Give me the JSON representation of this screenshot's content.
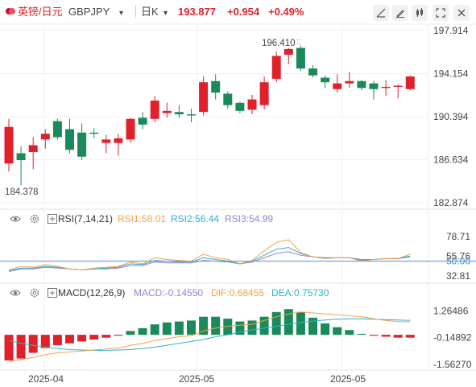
{
  "header": {
    "symbol_name": "英镑/日元",
    "symbol_code": "GBPJPY",
    "symbol_caret": "▾",
    "period": "日K",
    "period_caret": "▾",
    "last_price": "193.877",
    "change": "+0.954",
    "change_pct": "+0.49%",
    "up_color": "#e0212b"
  },
  "toolbar": {
    "icons": [
      "drawing-tools-icon",
      "edit-icon",
      "settings-icon",
      "candlestick-style-icon",
      "fullscreen-icon",
      "close-icon"
    ]
  },
  "rsi_panel": {
    "label": "RSI(7,14,21)",
    "rsi1_label": "RSI1:58.01",
    "rsi2_label": "RSI2:56.44",
    "rsi3_label": "RSI3:54.99",
    "axis_labels": [
      "78.71",
      "55.76",
      "50.00",
      "32.81"
    ]
  },
  "macd_panel": {
    "label": "MACD(12,26,9)",
    "macd_label": "MACD:-0.14550",
    "dif_label": "DIF:0.68455",
    "dea_label": "DEA:0.75730",
    "axis_labels": [
      "1.26486",
      "-0.14892",
      "-1.56270"
    ]
  },
  "colors": {
    "up": "#e0212b",
    "down": "#1a8a5a",
    "rsi1": "#f5a04a",
    "rsi2": "#2bb5c8",
    "rsi3": "#9b7fd6",
    "dif": "#f5a04a",
    "dea": "#2bb5c8",
    "ref_line": "#4a90e2"
  },
  "chart_data": {
    "type": "candlestick",
    "title": "英镑/日元 GBPJPY 日K",
    "y_axis_labels": [
      "197.914",
      "194.154",
      "190.394",
      "186.634",
      "182.874"
    ],
    "ylim": [
      182.874,
      197.914
    ],
    "x_axis_labels": [
      "2025-04",
      "2025-05",
      "2025-05"
    ],
    "annotations": {
      "high_label": "196.410",
      "low_label": "184.378"
    },
    "candles": [
      {
        "o": 186.3,
        "h": 190.2,
        "l": 185.6,
        "c": 189.5
      },
      {
        "o": 187.2,
        "h": 187.8,
        "l": 184.4,
        "c": 186.6
      },
      {
        "o": 187.3,
        "h": 188.6,
        "l": 185.8,
        "c": 187.9
      },
      {
        "o": 188.4,
        "h": 189.3,
        "l": 187.6,
        "c": 188.9
      },
      {
        "o": 190.0,
        "h": 190.2,
        "l": 188.4,
        "c": 188.6
      },
      {
        "o": 189.3,
        "h": 190.2,
        "l": 187.2,
        "c": 187.5
      },
      {
        "o": 189.0,
        "h": 189.8,
        "l": 186.6,
        "c": 186.9
      },
      {
        "o": 189.0,
        "h": 189.4,
        "l": 188.5,
        "c": 188.9
      },
      {
        "o": 188.1,
        "h": 188.8,
        "l": 187.2,
        "c": 188.4
      },
      {
        "o": 188.1,
        "h": 188.9,
        "l": 187.0,
        "c": 188.5
      },
      {
        "o": 188.4,
        "h": 190.3,
        "l": 188.1,
        "c": 190.2
      },
      {
        "o": 190.3,
        "h": 190.8,
        "l": 189.3,
        "c": 189.7
      },
      {
        "o": 190.2,
        "h": 192.2,
        "l": 189.9,
        "c": 191.8
      },
      {
        "o": 190.7,
        "h": 191.6,
        "l": 190.3,
        "c": 190.9
      },
      {
        "o": 190.8,
        "h": 191.4,
        "l": 190.3,
        "c": 190.6
      },
      {
        "o": 190.6,
        "h": 191.1,
        "l": 189.9,
        "c": 190.5
      },
      {
        "o": 190.8,
        "h": 193.9,
        "l": 190.5,
        "c": 193.4
      },
      {
        "o": 193.5,
        "h": 194.1,
        "l": 191.9,
        "c": 192.5
      },
      {
        "o": 192.4,
        "h": 192.6,
        "l": 191.1,
        "c": 191.4
      },
      {
        "o": 191.6,
        "h": 191.7,
        "l": 190.7,
        "c": 190.9
      },
      {
        "o": 191.0,
        "h": 192.3,
        "l": 190.6,
        "c": 191.9
      },
      {
        "o": 191.4,
        "h": 193.9,
        "l": 191.0,
        "c": 193.4
      },
      {
        "o": 193.7,
        "h": 196.1,
        "l": 193.4,
        "c": 195.7
      },
      {
        "o": 195.8,
        "h": 196.4,
        "l": 195.0,
        "c": 196.3
      },
      {
        "o": 196.4,
        "h": 196.6,
        "l": 194.4,
        "c": 194.6
      },
      {
        "o": 194.6,
        "h": 194.9,
        "l": 193.8,
        "c": 194.0
      },
      {
        "o": 193.8,
        "h": 194.0,
        "l": 192.9,
        "c": 193.4
      },
      {
        "o": 192.8,
        "h": 194.1,
        "l": 192.5,
        "c": 193.3
      },
      {
        "o": 193.3,
        "h": 194.3,
        "l": 192.9,
        "c": 193.5
      },
      {
        "o": 193.5,
        "h": 193.6,
        "l": 192.7,
        "c": 192.9
      },
      {
        "o": 193.3,
        "h": 193.5,
        "l": 191.9,
        "c": 192.8
      },
      {
        "o": 192.9,
        "h": 193.6,
        "l": 192.2,
        "c": 193.0
      },
      {
        "o": 193.0,
        "h": 193.2,
        "l": 192.0,
        "c": 193.1
      },
      {
        "o": 192.8,
        "h": 194.0,
        "l": 192.7,
        "c": 193.9
      }
    ],
    "rsi": {
      "ylim": [
        32.81,
        78.71
      ],
      "rsi1": [
        40,
        44,
        43,
        46,
        44,
        41,
        40,
        42,
        43,
        44,
        49,
        47,
        54,
        52,
        51,
        50,
        58,
        54,
        52,
        47,
        51,
        62,
        72,
        75,
        60,
        55,
        53,
        54,
        54,
        50,
        52,
        53,
        53,
        58
      ],
      "rsi2": [
        39,
        42,
        42,
        44,
        43,
        41,
        40,
        41,
        42,
        43,
        47,
        46,
        51,
        50,
        49,
        49,
        54,
        52,
        50,
        47,
        50,
        57,
        64,
        66,
        59,
        55,
        54,
        54,
        54,
        51,
        52,
        53,
        53,
        56
      ],
      "rsi3": [
        38,
        41,
        41,
        43,
        42,
        41,
        40,
        41,
        41,
        42,
        45,
        45,
        49,
        48,
        48,
        48,
        51,
        50,
        49,
        47,
        49,
        54,
        59,
        61,
        57,
        55,
        54,
        54,
        54,
        52,
        52,
        53,
        53,
        55
      ]
    },
    "macd": {
      "ylim": [
        -1.5627,
        1.7
      ],
      "bars": [
        -1.35,
        -1.25,
        -0.95,
        -0.7,
        -0.55,
        -0.45,
        -0.35,
        -0.25,
        -0.15,
        -0.05,
        0.2,
        0.35,
        0.55,
        0.65,
        0.7,
        0.75,
        0.95,
        0.95,
        0.85,
        0.7,
        0.75,
        0.95,
        1.2,
        1.35,
        1.2,
        0.9,
        0.6,
        0.4,
        0.25,
        0.05,
        -0.05,
        -0.1,
        -0.15,
        -0.15
      ],
      "dif": [
        -1.4,
        -1.3,
        -1.2,
        -1.05,
        -0.95,
        -0.9,
        -0.85,
        -0.8,
        -0.75,
        -0.7,
        -0.55,
        -0.45,
        -0.3,
        -0.2,
        -0.1,
        -0.05,
        0.2,
        0.35,
        0.45,
        0.5,
        0.55,
        0.75,
        0.95,
        1.1,
        1.2,
        1.15,
        1.1,
        1.05,
        1.0,
        0.95,
        0.85,
        0.75,
        0.7,
        0.68
      ],
      "dea": [
        -0.3,
        -0.45,
        -0.55,
        -0.65,
        -0.72,
        -0.78,
        -0.8,
        -0.82,
        -0.82,
        -0.8,
        -0.78,
        -0.72,
        -0.65,
        -0.55,
        -0.45,
        -0.35,
        -0.25,
        -0.1,
        0.0,
        0.15,
        0.25,
        0.35,
        0.45,
        0.55,
        0.65,
        0.72,
        0.78,
        0.82,
        0.84,
        0.84,
        0.82,
        0.8,
        0.78,
        0.76
      ]
    }
  }
}
